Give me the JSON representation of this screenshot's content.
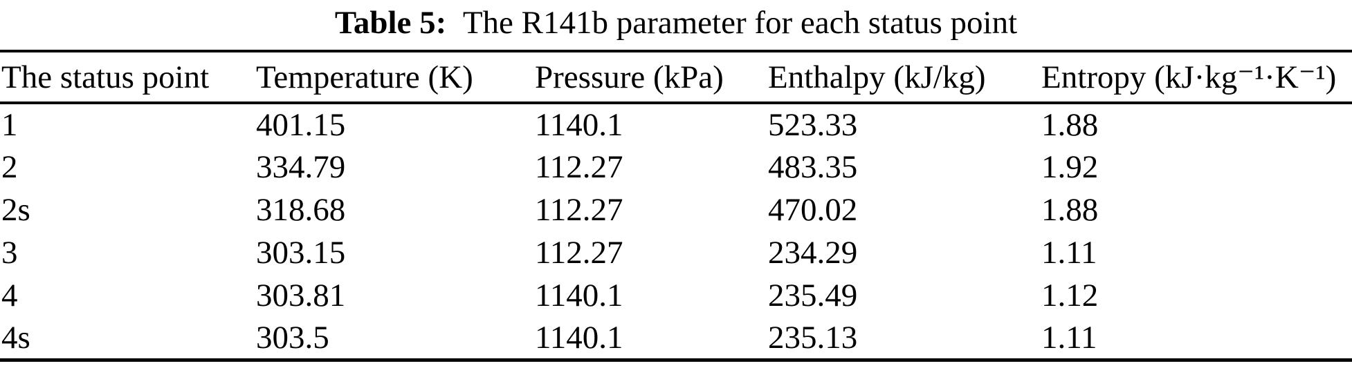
{
  "caption": {
    "label": "Table 5:",
    "text": "The R141b parameter for each status point"
  },
  "table": {
    "headers": [
      "The status point",
      "Temperature (K)",
      "Pressure (kPa)",
      "Enthalpy (kJ/kg)",
      "Entropy (kJ·kg⁻¹·K⁻¹)"
    ],
    "rows": [
      [
        "1",
        "401.15",
        "1140.1",
        "523.33",
        "1.88"
      ],
      [
        "2",
        "334.79",
        "112.27",
        "483.35",
        "1.92"
      ],
      [
        "2s",
        "318.68",
        "112.27",
        "470.02",
        "1.88"
      ],
      [
        "3",
        "303.15",
        "112.27",
        "234.29",
        "1.11"
      ],
      [
        "4",
        "303.81",
        "1140.1",
        "235.49",
        "1.12"
      ],
      [
        "4s",
        "303.5",
        "1140.1",
        "235.13",
        "1.11"
      ]
    ]
  }
}
